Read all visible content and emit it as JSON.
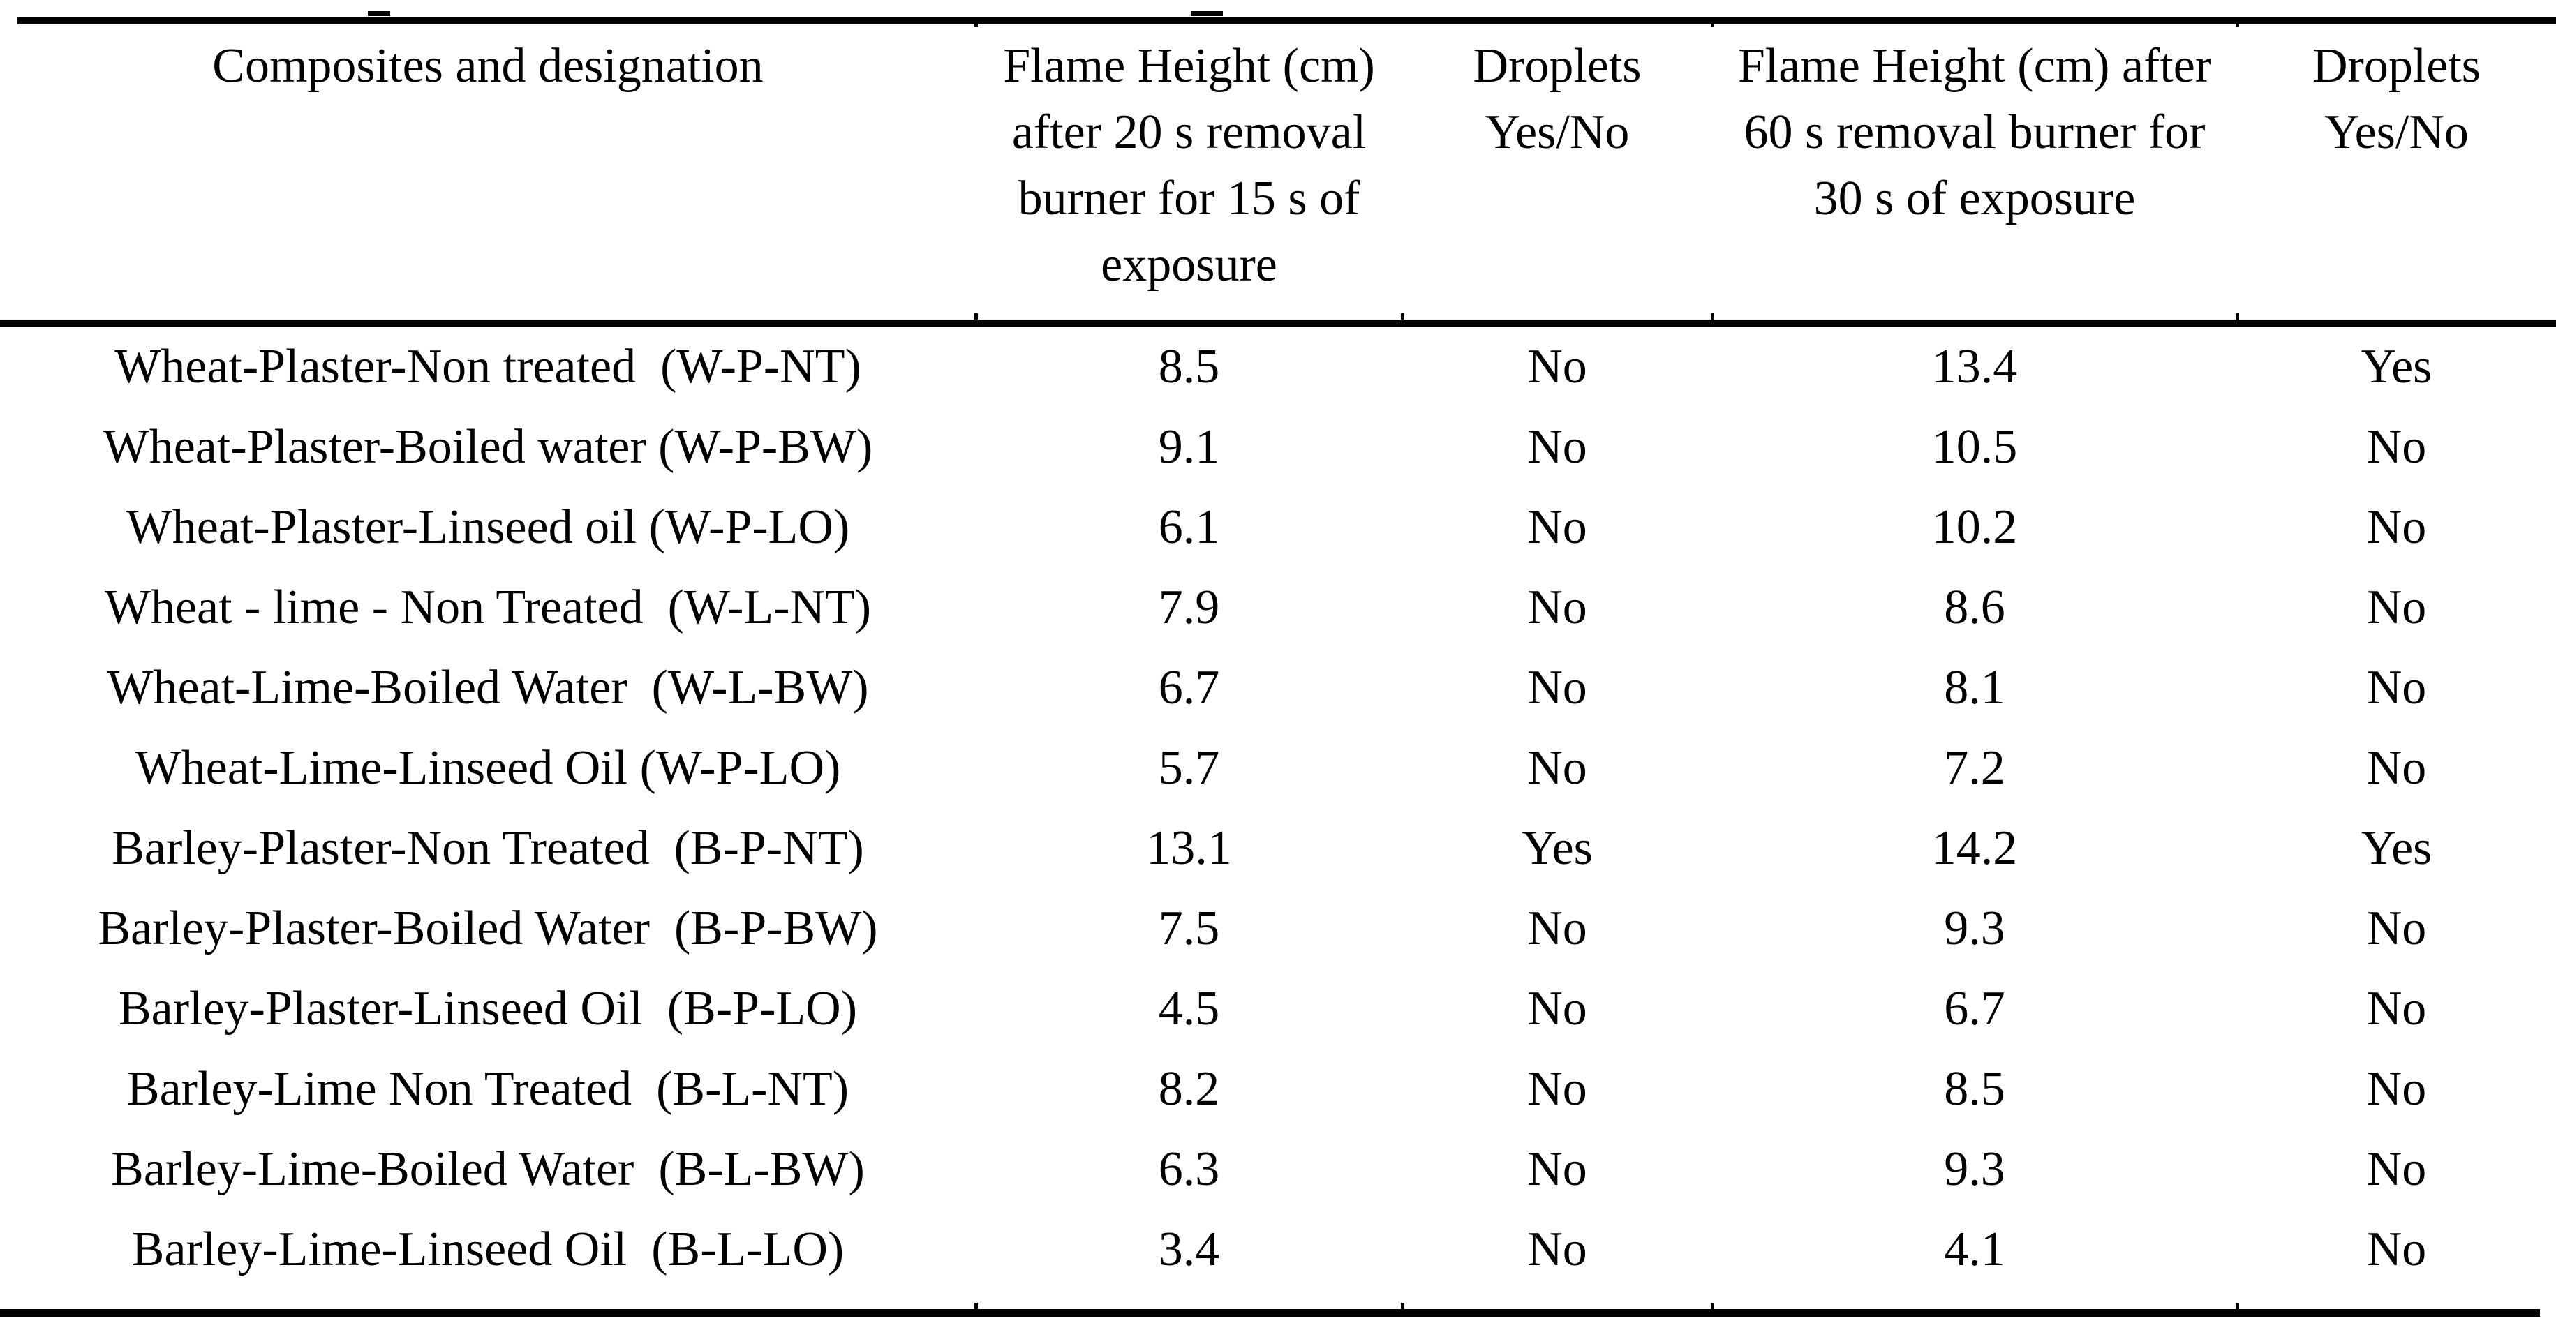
{
  "table": {
    "columns": [
      {
        "label": "Composites and designation"
      },
      {
        "label": "Flame Height (cm)\nafter 20 s removal\nburner for 15 s of\nexposure"
      },
      {
        "label": "Droplets\nYes/No"
      },
      {
        "label": "Flame Height (cm) after\n60 s removal burner for\n30 s of exposure"
      },
      {
        "label": "Droplets\nYes/No"
      }
    ],
    "rows": [
      {
        "designation": "Wheat-Plaster-Non treated  (W-P-NT)",
        "flame_20s": "8.5",
        "droplets_20s": "No",
        "flame_60s": "13.4",
        "droplets_60s": "Yes"
      },
      {
        "designation": "Wheat-Plaster-Boiled water (W-P-BW)",
        "flame_20s": "9.1",
        "droplets_20s": "No",
        "flame_60s": "10.5",
        "droplets_60s": "No"
      },
      {
        "designation": "Wheat-Plaster-Linseed oil (W-P-LO)",
        "flame_20s": "6.1",
        "droplets_20s": "No",
        "flame_60s": "10.2",
        "droplets_60s": "No"
      },
      {
        "designation": "Wheat - lime - Non Treated  (W-L-NT)",
        "flame_20s": "7.9",
        "droplets_20s": "No",
        "flame_60s": "8.6",
        "droplets_60s": "No"
      },
      {
        "designation": "Wheat-Lime-Boiled Water  (W-L-BW)",
        "flame_20s": "6.7",
        "droplets_20s": "No",
        "flame_60s": "8.1",
        "droplets_60s": "No"
      },
      {
        "designation": "Wheat-Lime-Linseed Oil (W-P-LO)",
        "flame_20s": "5.7",
        "droplets_20s": "No",
        "flame_60s": "7.2",
        "droplets_60s": "No"
      },
      {
        "designation": "Barley-Plaster-Non Treated  (B-P-NT)",
        "flame_20s": "13.1",
        "droplets_20s": "Yes",
        "flame_60s": "14.2",
        "droplets_60s": "Yes"
      },
      {
        "designation": "Barley-Plaster-Boiled Water  (B-P-BW)",
        "flame_20s": "7.5",
        "droplets_20s": "No",
        "flame_60s": "9.3",
        "droplets_60s": "No"
      },
      {
        "designation": "Barley-Plaster-Linseed Oil  (B-P-LO)",
        "flame_20s": "4.5",
        "droplets_20s": "No",
        "flame_60s": "6.7",
        "droplets_60s": "No"
      },
      {
        "designation": "Barley-Lime Non Treated  (B-L-NT)",
        "flame_20s": "8.2",
        "droplets_20s": "No",
        "flame_60s": "8.5",
        "droplets_60s": "No"
      },
      {
        "designation": "Barley-Lime-Boiled Water  (B-L-BW)",
        "flame_20s": "6.3",
        "droplets_20s": "No",
        "flame_60s": "9.3",
        "droplets_60s": "No"
      },
      {
        "designation": "Barley-Lime-Linseed Oil  (B-L-LO)",
        "flame_20s": "3.4",
        "droplets_20s": "No",
        "flame_60s": "4.1",
        "droplets_60s": "No"
      }
    ]
  },
  "colors": {
    "background": "#ffffff",
    "text": "#000000",
    "rule": "#000000"
  }
}
